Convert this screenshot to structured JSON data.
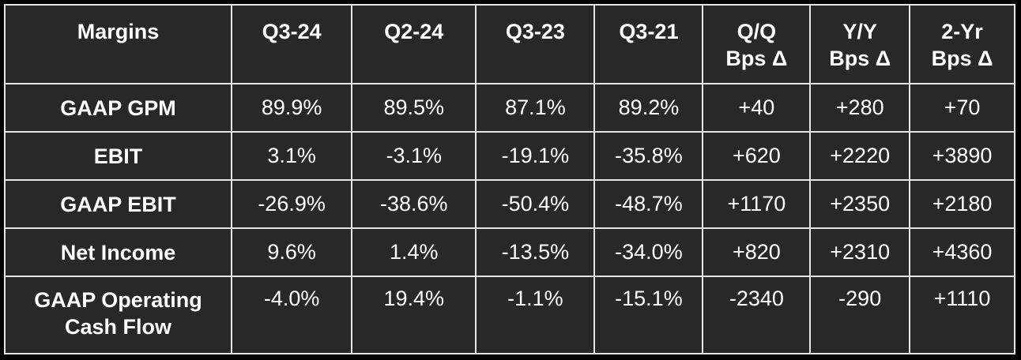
{
  "chart_data": {
    "type": "table",
    "columns": [
      "Margins",
      "Q3-24",
      "Q2-24",
      "Q3-23",
      "Q3-21",
      "Q/Q\nBps Δ",
      "Y/Y\nBps Δ",
      "2-Yr\nBps Δ"
    ],
    "rows": [
      {
        "label": "GAAP GPM",
        "cells": [
          "89.9%",
          "89.5%",
          "87.1%",
          "89.2%",
          "+40",
          "+280",
          "+70"
        ]
      },
      {
        "label": "EBIT",
        "cells": [
          "3.1%",
          "-3.1%",
          "-19.1%",
          "-35.8%",
          "+620",
          "+2220",
          "+3890"
        ]
      },
      {
        "label": "GAAP EBIT",
        "cells": [
          "-26.9%",
          "-38.6%",
          "-50.4%",
          "-48.7%",
          "+1170",
          "+2350",
          "+2180"
        ]
      },
      {
        "label": "Net Income",
        "cells": [
          "9.6%",
          "1.4%",
          "-13.5%",
          "-34.0%",
          "+820",
          "+2310",
          "+4360"
        ]
      },
      {
        "label": "GAAP Operating\nCash Flow",
        "cells": [
          "-4.0%",
          "19.4%",
          "-1.1%",
          "-15.1%",
          "-2340",
          "-290",
          "+1110"
        ]
      }
    ]
  },
  "colors": {
    "background": "#000000",
    "cell_background": "#282828",
    "grid": "#e6e6e6",
    "text": "#ffffff"
  }
}
